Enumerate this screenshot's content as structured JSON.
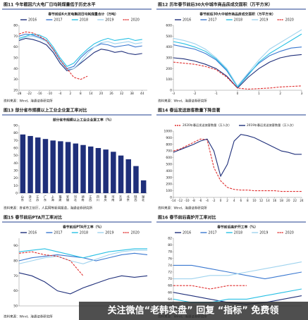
{
  "chart_data": [
    {
      "type": "line",
      "caption": "图11 今年截因六大电厂日均耗煤量低于历史水平",
      "title": "春节前后6大发电集团日均耗煤量合计（万吨）",
      "x": [
        -28,
        -24,
        -20,
        -16,
        -12,
        -8,
        -4,
        0,
        4,
        8,
        12,
        16,
        20,
        24,
        28,
        32,
        36,
        40,
        44
      ],
      "xlim": [
        -28,
        47
      ],
      "xticks": [
        -28,
        -22,
        -16,
        -10,
        -4,
        2,
        8,
        14,
        20,
        26,
        32,
        38,
        44
      ],
      "ylim": [
        20,
        80
      ],
      "yticks": [
        20,
        30,
        40,
        50,
        60,
        70,
        80
      ],
      "series": [
        {
          "name": "2016",
          "color": "#1f2f7a",
          "values": [
            66,
            68,
            67,
            65,
            62,
            55,
            45,
            38,
            40,
            45,
            50,
            55,
            58,
            57,
            55,
            56,
            54,
            53,
            54
          ]
        },
        {
          "name": "2017",
          "color": "#3a78d0",
          "values": [
            70,
            72,
            71,
            69,
            66,
            58,
            48,
            40,
            42,
            50,
            56,
            60,
            63,
            62,
            60,
            61,
            62,
            60,
            61
          ]
        },
        {
          "name": "2018",
          "color": "#27c0e4",
          "values": [
            68,
            70,
            72,
            71,
            68,
            60,
            50,
            42,
            45,
            52,
            58,
            63,
            66,
            68,
            66,
            67,
            68,
            66,
            67
          ]
        },
        {
          "name": "2019",
          "color": "#9fd3ee",
          "values": [
            67,
            69,
            70,
            68,
            65,
            57,
            47,
            39,
            40,
            46,
            54,
            60,
            64,
            65,
            63,
            64,
            65,
            63,
            64
          ]
        },
        {
          "name": "2020",
          "color": "#e03030",
          "dashed": true,
          "values": [
            72,
            74,
            73,
            70,
            66,
            58,
            48,
            40,
            32,
            30,
            33,
            null,
            null,
            null,
            null,
            null,
            null,
            null,
            null
          ]
        }
      ],
      "source": "资料来源：Wind，海通证券研究所"
    },
    {
      "type": "line",
      "caption": "图12 历年春节前后30大中城市商品房成交面积（万平方米）",
      "title": "春节前后30大中城市商品房成交面积（万平方米）",
      "x": [
        -3,
        -2.5,
        -2,
        -1.5,
        -1,
        -0.5,
        0,
        0.5,
        1,
        1.5,
        2,
        2.5,
        3
      ],
      "xlim": [
        -3,
        3
      ],
      "xticks": [
        -3,
        -2,
        -1,
        0,
        1,
        2,
        3
      ],
      "ylim": [
        0,
        600
      ],
      "yticks": [
        0,
        100,
        200,
        300,
        400,
        500,
        600
      ],
      "series": [
        {
          "name": "2016",
          "color": "#1f2f7a",
          "values": [
            300,
            290,
            270,
            240,
            200,
            130,
            20,
            120,
            200,
            260,
            300,
            320,
            330
          ]
        },
        {
          "name": "2017",
          "color": "#3a78d0",
          "values": [
            420,
            400,
            380,
            340,
            280,
            180,
            30,
            150,
            250,
            320,
            360,
            390,
            400
          ]
        },
        {
          "name": "2018",
          "color": "#27c0e4",
          "values": [
            450,
            430,
            400,
            360,
            290,
            190,
            30,
            140,
            260,
            340,
            400,
            460,
            520
          ]
        },
        {
          "name": "2019",
          "color": "#9fd3ee",
          "values": [
            480,
            460,
            430,
            380,
            300,
            200,
            40,
            160,
            280,
            380,
            440,
            500,
            560
          ]
        },
        {
          "name": "2020",
          "color": "#e03030",
          "dashed": true,
          "values": [
            260,
            250,
            240,
            220,
            190,
            120,
            20,
            10,
            15,
            20,
            30,
            35,
            40
          ]
        }
      ],
      "source": "资料来源：Wind，海通证券研究所"
    },
    {
      "type": "bar",
      "caption": "图13 部分省市规模以上工业企业复工率对比",
      "title": "部分省市规模以上工业企业复工率（%）",
      "categories": [
        "山东",
        "浙江",
        "江苏",
        "广东",
        "上海",
        "福建",
        "安徽",
        "河北",
        "湖南",
        "江西",
        "四川",
        "重庆",
        "河南",
        "天津",
        "北京",
        "陕西",
        "湖北"
      ],
      "values": [
        78,
        76,
        74,
        72,
        70,
        69,
        68,
        66,
        64,
        62,
        60,
        58,
        55,
        50,
        45,
        36,
        17
      ],
      "color": "#1f2f7a",
      "ylim": [
        0,
        90
      ],
      "yticks": [
        0,
        10,
        20,
        30,
        40,
        50,
        60,
        70,
        80,
        90
      ],
      "source": "资料来源：各省市工信厅，人民网等新闻报道，海通证券研究所"
    },
    {
      "type": "line",
      "caption": "图14 春运发送旅客数量下降显著",
      "title": "",
      "x": [
        -14,
        -12,
        -10,
        -8,
        -6,
        -4,
        -2,
        0,
        2,
        4,
        6,
        8,
        10,
        12,
        14,
        16,
        18,
        20,
        22,
        24
      ],
      "xlim": [
        -14,
        24
      ],
      "xticks": [
        -14,
        -12,
        -10,
        -8,
        -6,
        -4,
        -2,
        0,
        2,
        4,
        6,
        8,
        10,
        12,
        14,
        16,
        18,
        20,
        22,
        24
      ],
      "ylim": [
        0,
        1000
      ],
      "yticks": [
        0,
        100,
        200,
        300,
        400,
        500,
        600,
        700,
        800,
        900,
        1000
      ],
      "series": [
        {
          "name": "2020年春运发送旅客数量（万人次）",
          "color": "#e03030",
          "dashed": true,
          "values": [
            700,
            730,
            780,
            830,
            880,
            870,
            450,
            250,
            150,
            120,
            110,
            110,
            100,
            100,
            100,
            100,
            90,
            90,
            90,
            90
          ]
        },
        {
          "name": "2019年春运发送旅客数量（万人次）",
          "color": "#1f2f7a",
          "values": [
            680,
            720,
            760,
            800,
            850,
            880,
            700,
            320,
            500,
            850,
            950,
            930,
            900,
            850,
            800,
            750,
            700,
            680,
            650,
            650
          ]
        }
      ],
      "source": "资料来源：Wind，海通证券研究所"
    },
    {
      "type": "line",
      "caption": "图15 春节前后PTA开工率对比",
      "title": "春节前后PTA开工率（%）",
      "x": [
        -20,
        -16,
        -12,
        -8,
        -4,
        0,
        4,
        8,
        12,
        16,
        20
      ],
      "xlim": [
        -20,
        20
      ],
      "ylim": [
        50,
        95
      ],
      "yticks": [
        50,
        60,
        70,
        80,
        90
      ],
      "series": [
        {
          "name": "2016",
          "color": "#1f2f7a",
          "values": [
            72,
            70,
            66,
            60,
            58,
            62,
            65,
            68,
            70,
            69,
            70
          ]
        },
        {
          "name": "2017",
          "color": "#3a78d0",
          "values": [
            80,
            82,
            83,
            84,
            83,
            82,
            80,
            82,
            84,
            85,
            84
          ]
        },
        {
          "name": "2018",
          "color": "#27c0e4",
          "values": [
            86,
            87,
            88,
            86,
            84,
            82,
            84,
            86,
            87,
            88,
            88
          ]
        },
        {
          "name": "2019",
          "color": "#9fd3ee",
          "values": [
            78,
            80,
            82,
            83,
            80,
            78,
            81,
            84,
            86,
            87,
            87
          ]
        },
        {
          "name": "2020",
          "color": "#e03030",
          "dashed": true,
          "values": [
            85,
            86,
            84,
            83,
            80,
            70,
            null,
            null,
            null,
            null,
            null
          ]
        }
      ],
      "source": "资料来源：Wind，海通证券研究所"
    },
    {
      "type": "line",
      "caption": "图16 春节前后高炉开工率对比",
      "title": "春节前后高炉开工率（%）",
      "x": [
        -20,
        -15,
        -10,
        -5,
        0,
        5,
        10,
        15
      ],
      "xlim": [
        -20,
        15
      ],
      "ylim": [
        62,
        82
      ],
      "yticks": [
        62,
        64,
        66,
        68,
        70,
        72,
        74,
        76,
        78,
        80,
        82
      ],
      "series": [
        {
          "name": "2016",
          "color": "#1f2f7a",
          "values": [
            66,
            65,
            64,
            63,
            62.5,
            63,
            64,
            65
          ]
        },
        {
          "name": "2017",
          "color": "#3a78d0",
          "values": [
            74,
            74,
            73,
            72,
            71,
            70,
            71,
            72
          ]
        },
        {
          "name": "2018",
          "color": "#27c0e4",
          "values": [
            64,
            63,
            63,
            64,
            64,
            65,
            66,
            67
          ]
        },
        {
          "name": "2019",
          "color": "#9fd3ee",
          "values": [
            70,
            70,
            71,
            71,
            72,
            73,
            74,
            75
          ]
        },
        {
          "name": "2020",
          "color": "#e03030",
          "dashed": true,
          "values": [
            68,
            68,
            67,
            68,
            68,
            null,
            null,
            null
          ]
        }
      ],
      "source": "资料来源：Wind，海通证券研究所"
    }
  ],
  "watermark": "关注微信“老韩实盘” 回复 “指标” 免费领"
}
